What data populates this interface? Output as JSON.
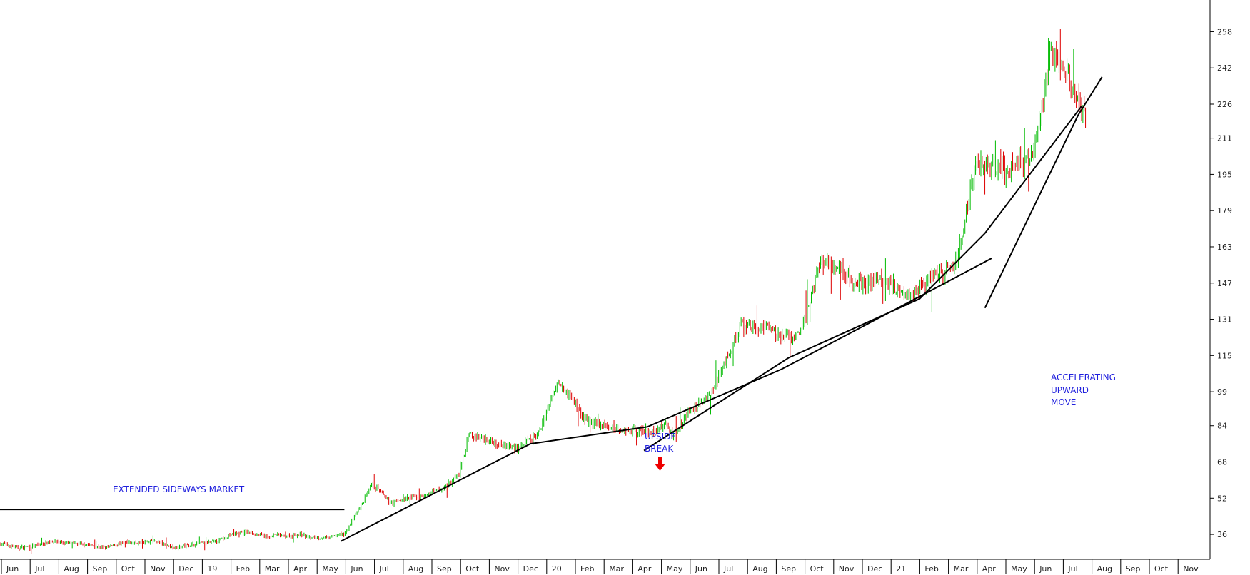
{
  "chart_data": {
    "type": "candlestick",
    "title": "",
    "xlabel": "",
    "ylabel": "",
    "ylim": [
      25,
      272
    ],
    "y_ticks": [
      36,
      52,
      68,
      84,
      99,
      115,
      131,
      147,
      163,
      179,
      195,
      211,
      226,
      242,
      258
    ],
    "x_ticks": [
      "Jun",
      "Jul",
      "Aug",
      "Sep",
      "Oct",
      "Nov",
      "Dec",
      "19",
      "Feb",
      "Mar",
      "Apr",
      "May",
      "Jun",
      "Jul",
      "Aug",
      "Sep",
      "Oct",
      "Nov",
      "Dec",
      "20",
      "Feb",
      "Mar",
      "Apr",
      "May",
      "Jun",
      "Jul",
      "Aug",
      "Sep",
      "Oct",
      "Nov",
      "Dec",
      "21",
      "Feb",
      "Mar",
      "Apr",
      "May",
      "Jun",
      "Jul",
      "Aug",
      "Sep",
      "Oct",
      "Nov"
    ],
    "up_color": "#00bb00",
    "down_color": "#dd0000",
    "price_path": [
      [
        0,
        32
      ],
      [
        0.05,
        30
      ],
      [
        0.1,
        31
      ],
      [
        0.15,
        33
      ],
      [
        0.2,
        32
      ],
      [
        0.25,
        31.5
      ],
      [
        0.3,
        30
      ],
      [
        0.35,
        32
      ],
      [
        0.4,
        32.5
      ],
      [
        0.45,
        33
      ],
      [
        0.5,
        30
      ],
      [
        0.53,
        31
      ],
      [
        0.58,
        32
      ],
      [
        0.63,
        33
      ],
      [
        0.67,
        36
      ],
      [
        0.71,
        37
      ],
      [
        0.75,
        36
      ],
      [
        0.78,
        34.5
      ],
      [
        0.8,
        36
      ],
      [
        0.82,
        35
      ],
      [
        0.87,
        36
      ],
      [
        0.9,
        34.5
      ],
      [
        0.92,
        34.5
      ],
      [
        0.95,
        34.5
      ],
      [
        1.0,
        36.5
      ],
      [
        1.08,
        58
      ],
      [
        1.13,
        50
      ],
      [
        1.18,
        52
      ],
      [
        1.23,
        53
      ],
      [
        1.28,
        56
      ],
      [
        1.33,
        62
      ],
      [
        1.36,
        80
      ],
      [
        1.45,
        76
      ],
      [
        1.5,
        74
      ],
      [
        1.56,
        80
      ],
      [
        1.62,
        105
      ],
      [
        1.7,
        86
      ],
      [
        1.75,
        84
      ],
      [
        1.8,
        82
      ],
      [
        1.85,
        82
      ],
      [
        1.9,
        81
      ],
      [
        1.93,
        85
      ],
      [
        1.95,
        80
      ],
      [
        2.0,
        90
      ],
      [
        2.06,
        98
      ],
      [
        2.1,
        110
      ],
      [
        2.15,
        128
      ],
      [
        2.2,
        127
      ],
      [
        2.25,
        125
      ],
      [
        2.3,
        122
      ],
      [
        2.33,
        128
      ],
      [
        2.38,
        157
      ],
      [
        2.43,
        154
      ],
      [
        2.48,
        148
      ],
      [
        2.51,
        146
      ],
      [
        2.55,
        149
      ],
      [
        2.6,
        145
      ],
      [
        2.65,
        142
      ],
      [
        2.7,
        150
      ],
      [
        2.75,
        152
      ],
      [
        2.78,
        157
      ],
      [
        2.83,
        200
      ],
      [
        2.9,
        196
      ],
      [
        2.94,
        198
      ],
      [
        3.0,
        204
      ],
      [
        3.05,
        250
      ],
      [
        3.1,
        238
      ],
      [
        3.15,
        220
      ]
    ],
    "trendlines": [
      {
        "name": "sideways-resistance",
        "points": [
          [
            -0.04,
            47
          ],
          [
            1.0,
            47
          ]
        ]
      },
      {
        "name": "long-term-uptrend",
        "points": [
          [
            0.99,
            33
          ],
          [
            1.54,
            76
          ],
          [
            1.88,
            83.5
          ],
          [
            2.27,
            109
          ],
          [
            2.67,
            141
          ],
          [
            2.88,
            158
          ]
        ]
      },
      {
        "name": "medium-term-uptrend",
        "points": [
          [
            1.87,
            73
          ],
          [
            2.29,
            114
          ],
          [
            2.67,
            140
          ],
          [
            2.86,
            169
          ],
          [
            3.14,
            225
          ]
        ]
      },
      {
        "name": "steep-uptrend",
        "points": [
          [
            2.86,
            136
          ],
          [
            3.13,
            221
          ],
          [
            3.2,
            238
          ]
        ]
      }
    ],
    "annotations": {
      "sideways": "EXTENDED SIDEWAYS MARKET",
      "upside_line1": "UPSIDE",
      "upside_line2": "BREAK",
      "accel_line1": "ACCELERATING",
      "accel_line2": "UPWARD",
      "accel_line3": "MOVE"
    },
    "arrow_color": "#ee0000",
    "annotation_color": "#1f1fdd"
  }
}
